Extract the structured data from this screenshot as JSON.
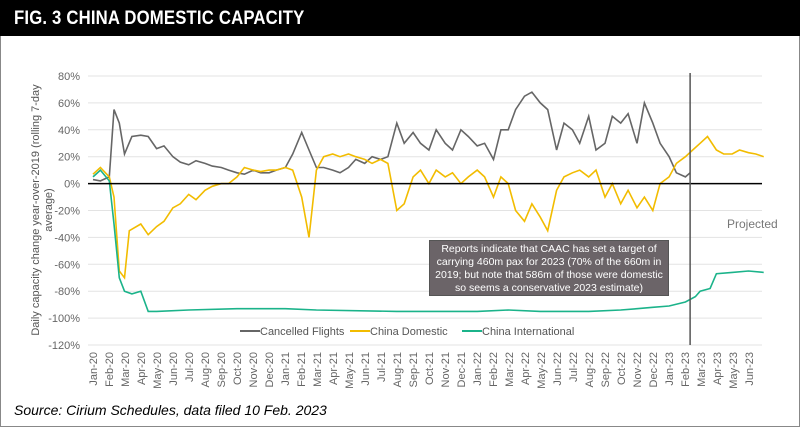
{
  "header": {
    "title": "FIG. 3 CHINA DOMESTIC CAPACITY"
  },
  "source": "Source: Cirium Schedules, data filed 10 Feb. 2023",
  "chart_data": {
    "type": "line",
    "ylabel": "Daily capacity change year-over-2019 (rolling 7-day average)",
    "ylim": [
      -120,
      80
    ],
    "yticks": [
      "80%",
      "60%",
      "40%",
      "20%",
      "0%",
      "-20%",
      "-40%",
      "-60%",
      "-80%",
      "-100%",
      "-120%"
    ],
    "xticks": [
      "Jan-20",
      "Feb-20",
      "Mar-20",
      "Apr-20",
      "May-20",
      "Jun-20",
      "Jul-20",
      "Aug-20",
      "Sep-20",
      "Oct-20",
      "Nov-20",
      "Dec-20",
      "Jan-21",
      "Feb-21",
      "Mar-21",
      "Apr-21",
      "May-21",
      "Jun-21",
      "Jul-21",
      "Aug-21",
      "Sep-21",
      "Oct-21",
      "Nov-21",
      "Dec-21",
      "Jan-22",
      "Feb-22",
      "Mar-22",
      "Apr-22",
      "May-22",
      "Jun-22",
      "Jul-22",
      "Aug-22",
      "Sep-22",
      "Oct-22",
      "Nov-22",
      "Dec-22",
      "Jan-23",
      "Feb-23",
      "Mar-23",
      "Apr-23",
      "May-23",
      "Jun-23"
    ],
    "grid": true,
    "legend": "bottom",
    "projection_start": "2023-02-10",
    "projection_label": "Projected",
    "annotation": "Reports indicate that CAAC has set a target of carrying 460m pax for 2023 (70% of the 660m in 2019; but note that 586m of those were domestic so seems a conservative 2023 estimate)",
    "series": [
      {
        "name": "Cancelled Flights",
        "color": "#666666",
        "points": [
          [
            "2020-01-01",
            3
          ],
          [
            "2020-01-15",
            2
          ],
          [
            "2020-02-01",
            5
          ],
          [
            "2020-02-10",
            55
          ],
          [
            "2020-02-20",
            45
          ],
          [
            "2020-03-01",
            22
          ],
          [
            "2020-03-15",
            35
          ],
          [
            "2020-04-01",
            36
          ],
          [
            "2020-04-15",
            35
          ],
          [
            "2020-05-01",
            26
          ],
          [
            "2020-05-15",
            28
          ],
          [
            "2020-06-01",
            20
          ],
          [
            "2020-06-15",
            16
          ],
          [
            "2020-07-01",
            14
          ],
          [
            "2020-07-15",
            17
          ],
          [
            "2020-08-01",
            15
          ],
          [
            "2020-08-15",
            13
          ],
          [
            "2020-09-01",
            12
          ],
          [
            "2020-09-15",
            10
          ],
          [
            "2020-10-01",
            8
          ],
          [
            "2020-10-15",
            7
          ],
          [
            "2020-11-01",
            10
          ],
          [
            "2020-11-15",
            8
          ],
          [
            "2020-12-01",
            8
          ],
          [
            "2020-12-15",
            10
          ],
          [
            "2021-01-01",
            12
          ],
          [
            "2021-01-15",
            22
          ],
          [
            "2021-02-01",
            38
          ],
          [
            "2021-02-15",
            25
          ],
          [
            "2021-03-01",
            12
          ],
          [
            "2021-03-15",
            12
          ],
          [
            "2021-04-01",
            10
          ],
          [
            "2021-04-15",
            8
          ],
          [
            "2021-05-01",
            12
          ],
          [
            "2021-05-15",
            18
          ],
          [
            "2021-06-01",
            15
          ],
          [
            "2021-06-15",
            20
          ],
          [
            "2021-07-01",
            18
          ],
          [
            "2021-07-15",
            20
          ],
          [
            "2021-08-01",
            45
          ],
          [
            "2021-08-15",
            30
          ],
          [
            "2021-09-01",
            38
          ],
          [
            "2021-09-15",
            30
          ],
          [
            "2021-10-01",
            25
          ],
          [
            "2021-10-15",
            40
          ],
          [
            "2021-11-01",
            30
          ],
          [
            "2021-11-15",
            25
          ],
          [
            "2021-12-01",
            40
          ],
          [
            "2021-12-15",
            35
          ],
          [
            "2022-01-01",
            28
          ],
          [
            "2022-01-15",
            30
          ],
          [
            "2022-02-01",
            18
          ],
          [
            "2022-02-15",
            40
          ],
          [
            "2022-03-01",
            40
          ],
          [
            "2022-03-15",
            55
          ],
          [
            "2022-04-01",
            65
          ],
          [
            "2022-04-15",
            68
          ],
          [
            "2022-05-01",
            60
          ],
          [
            "2022-05-15",
            55
          ],
          [
            "2022-06-01",
            25
          ],
          [
            "2022-06-15",
            45
          ],
          [
            "2022-07-01",
            40
          ],
          [
            "2022-07-15",
            30
          ],
          [
            "2022-08-01",
            50
          ],
          [
            "2022-08-15",
            25
          ],
          [
            "2022-09-01",
            30
          ],
          [
            "2022-09-15",
            50
          ],
          [
            "2022-10-01",
            45
          ],
          [
            "2022-10-15",
            52
          ],
          [
            "2022-11-01",
            30
          ],
          [
            "2022-11-15",
            60
          ],
          [
            "2022-12-01",
            45
          ],
          [
            "2022-12-15",
            30
          ],
          [
            "2023-01-01",
            20
          ],
          [
            "2023-01-15",
            8
          ],
          [
            "2023-02-01",
            5
          ],
          [
            "2023-02-10",
            8
          ]
        ]
      },
      {
        "name": "China Domestic",
        "color": "#F2BC00",
        "points": [
          [
            "2020-01-01",
            7
          ],
          [
            "2020-01-15",
            12
          ],
          [
            "2020-02-01",
            5
          ],
          [
            "2020-02-10",
            -10
          ],
          [
            "2020-02-20",
            -65
          ],
          [
            "2020-03-01",
            -70
          ],
          [
            "2020-03-10",
            -35
          ],
          [
            "2020-04-01",
            -30
          ],
          [
            "2020-04-15",
            -38
          ],
          [
            "2020-05-01",
            -32
          ],
          [
            "2020-05-15",
            -28
          ],
          [
            "2020-06-01",
            -18
          ],
          [
            "2020-06-15",
            -15
          ],
          [
            "2020-07-01",
            -8
          ],
          [
            "2020-07-15",
            -12
          ],
          [
            "2020-08-01",
            -5
          ],
          [
            "2020-08-15",
            -2
          ],
          [
            "2020-09-01",
            0
          ],
          [
            "2020-09-15",
            0
          ],
          [
            "2020-10-01",
            5
          ],
          [
            "2020-10-15",
            12
          ],
          [
            "2020-11-01",
            10
          ],
          [
            "2020-11-15",
            9
          ],
          [
            "2020-12-01",
            10
          ],
          [
            "2020-12-15",
            10
          ],
          [
            "2021-01-01",
            12
          ],
          [
            "2021-01-15",
            10
          ],
          [
            "2021-02-01",
            -10
          ],
          [
            "2021-02-15",
            -40
          ],
          [
            "2021-03-01",
            10
          ],
          [
            "2021-03-15",
            20
          ],
          [
            "2021-04-01",
            22
          ],
          [
            "2021-04-15",
            20
          ],
          [
            "2021-05-01",
            22
          ],
          [
            "2021-05-15",
            20
          ],
          [
            "2021-06-01",
            18
          ],
          [
            "2021-06-15",
            15
          ],
          [
            "2021-07-01",
            18
          ],
          [
            "2021-07-15",
            15
          ],
          [
            "2021-08-01",
            -20
          ],
          [
            "2021-08-15",
            -15
          ],
          [
            "2021-09-01",
            5
          ],
          [
            "2021-09-15",
            10
          ],
          [
            "2021-10-01",
            0
          ],
          [
            "2021-10-15",
            10
          ],
          [
            "2021-11-01",
            5
          ],
          [
            "2021-11-15",
            8
          ],
          [
            "2021-12-01",
            0
          ],
          [
            "2021-12-15",
            5
          ],
          [
            "2022-01-01",
            10
          ],
          [
            "2022-01-15",
            5
          ],
          [
            "2022-02-01",
            -10
          ],
          [
            "2022-02-15",
            5
          ],
          [
            "2022-03-01",
            0
          ],
          [
            "2022-03-15",
            -20
          ],
          [
            "2022-04-01",
            -28
          ],
          [
            "2022-04-15",
            -15
          ],
          [
            "2022-05-01",
            -25
          ],
          [
            "2022-05-15",
            -35
          ],
          [
            "2022-06-01",
            -5
          ],
          [
            "2022-06-15",
            5
          ],
          [
            "2022-07-01",
            8
          ],
          [
            "2022-07-15",
            10
          ],
          [
            "2022-08-01",
            5
          ],
          [
            "2022-08-15",
            10
          ],
          [
            "2022-09-01",
            -10
          ],
          [
            "2022-09-15",
            0
          ],
          [
            "2022-10-01",
            -15
          ],
          [
            "2022-10-15",
            -5
          ],
          [
            "2022-11-01",
            -18
          ],
          [
            "2022-11-15",
            -10
          ],
          [
            "2022-12-01",
            -20
          ],
          [
            "2022-12-15",
            0
          ],
          [
            "2023-01-01",
            5
          ],
          [
            "2023-01-15",
            15
          ],
          [
            "2023-02-01",
            20
          ],
          [
            "2023-02-15",
            25
          ],
          [
            "2023-03-01",
            30
          ],
          [
            "2023-03-15",
            35
          ],
          [
            "2023-04-01",
            25
          ],
          [
            "2023-04-15",
            22
          ],
          [
            "2023-05-01",
            22
          ],
          [
            "2023-05-15",
            25
          ],
          [
            "2023-06-01",
            23
          ],
          [
            "2023-06-15",
            22
          ],
          [
            "2023-06-30",
            20
          ]
        ]
      },
      {
        "name": "China International",
        "color": "#1BB38A",
        "points": [
          [
            "2020-01-01",
            5
          ],
          [
            "2020-01-15",
            10
          ],
          [
            "2020-02-01",
            2
          ],
          [
            "2020-02-10",
            -30
          ],
          [
            "2020-02-20",
            -70
          ],
          [
            "2020-03-01",
            -80
          ],
          [
            "2020-03-15",
            -82
          ],
          [
            "2020-04-01",
            -80
          ],
          [
            "2020-04-15",
            -95
          ],
          [
            "2020-05-01",
            -95
          ],
          [
            "2020-07-01",
            -94
          ],
          [
            "2020-10-01",
            -93
          ],
          [
            "2021-01-01",
            -93
          ],
          [
            "2021-03-01",
            -94
          ],
          [
            "2021-08-01",
            -95
          ],
          [
            "2022-01-01",
            -95
          ],
          [
            "2022-03-01",
            -94
          ],
          [
            "2022-05-01",
            -95
          ],
          [
            "2022-08-01",
            -95
          ],
          [
            "2022-10-01",
            -94
          ],
          [
            "2022-11-01",
            -93
          ],
          [
            "2022-12-01",
            -92
          ],
          [
            "2023-01-01",
            -91
          ],
          [
            "2023-02-01",
            -88
          ],
          [
            "2023-02-20",
            -84
          ],
          [
            "2023-03-01",
            -80
          ],
          [
            "2023-03-20",
            -78
          ],
          [
            "2023-04-01",
            -67
          ],
          [
            "2023-05-01",
            -66
          ],
          [
            "2023-06-01",
            -65
          ],
          [
            "2023-06-30",
            -66
          ]
        ]
      }
    ]
  }
}
